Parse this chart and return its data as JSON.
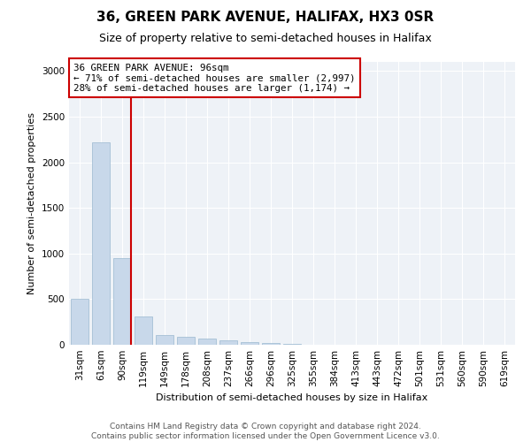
{
  "title": "36, GREEN PARK AVENUE, HALIFAX, HX3 0SR",
  "subtitle": "Size of property relative to semi-detached houses in Halifax",
  "xlabel": "Distribution of semi-detached houses by size in Halifax",
  "ylabel": "Number of semi-detached properties",
  "annotation_line1": "36 GREEN PARK AVENUE: 96sqm",
  "annotation_line2": "← 71% of semi-detached houses are smaller (2,997)",
  "annotation_line3": "28% of semi-detached houses are larger (1,174) →",
  "footer_line1": "Contains HM Land Registry data © Crown copyright and database right 2024.",
  "footer_line2": "Contains public sector information licensed under the Open Government Licence v3.0.",
  "bin_labels": [
    "31sqm",
    "61sqm",
    "90sqm",
    "119sqm",
    "149sqm",
    "178sqm",
    "208sqm",
    "237sqm",
    "266sqm",
    "296sqm",
    "325sqm",
    "355sqm",
    "384sqm",
    "413sqm",
    "443sqm",
    "472sqm",
    "501sqm",
    "531sqm",
    "560sqm",
    "590sqm",
    "619sqm"
  ],
  "bar_values": [
    500,
    2220,
    950,
    310,
    105,
    90,
    70,
    45,
    30,
    20,
    5,
    0,
    0,
    0,
    0,
    0,
    0,
    0,
    0,
    0,
    0
  ],
  "bar_color": "#c8d8ea",
  "bar_edgecolor": "#9ab8d0",
  "vline_color": "#cc0000",
  "vline_x_bin": 2,
  "annotation_box_color": "#cc0000",
  "plot_bg_color": "#eef2f7",
  "ylim": [
    0,
    3100
  ],
  "yticks": [
    0,
    500,
    1000,
    1500,
    2000,
    2500,
    3000
  ],
  "grid_color": "#ffffff",
  "title_fontsize": 11,
  "subtitle_fontsize": 9,
  "ylabel_fontsize": 8,
  "xlabel_fontsize": 8,
  "tick_fontsize": 7.5,
  "footer_fontsize": 6.5
}
